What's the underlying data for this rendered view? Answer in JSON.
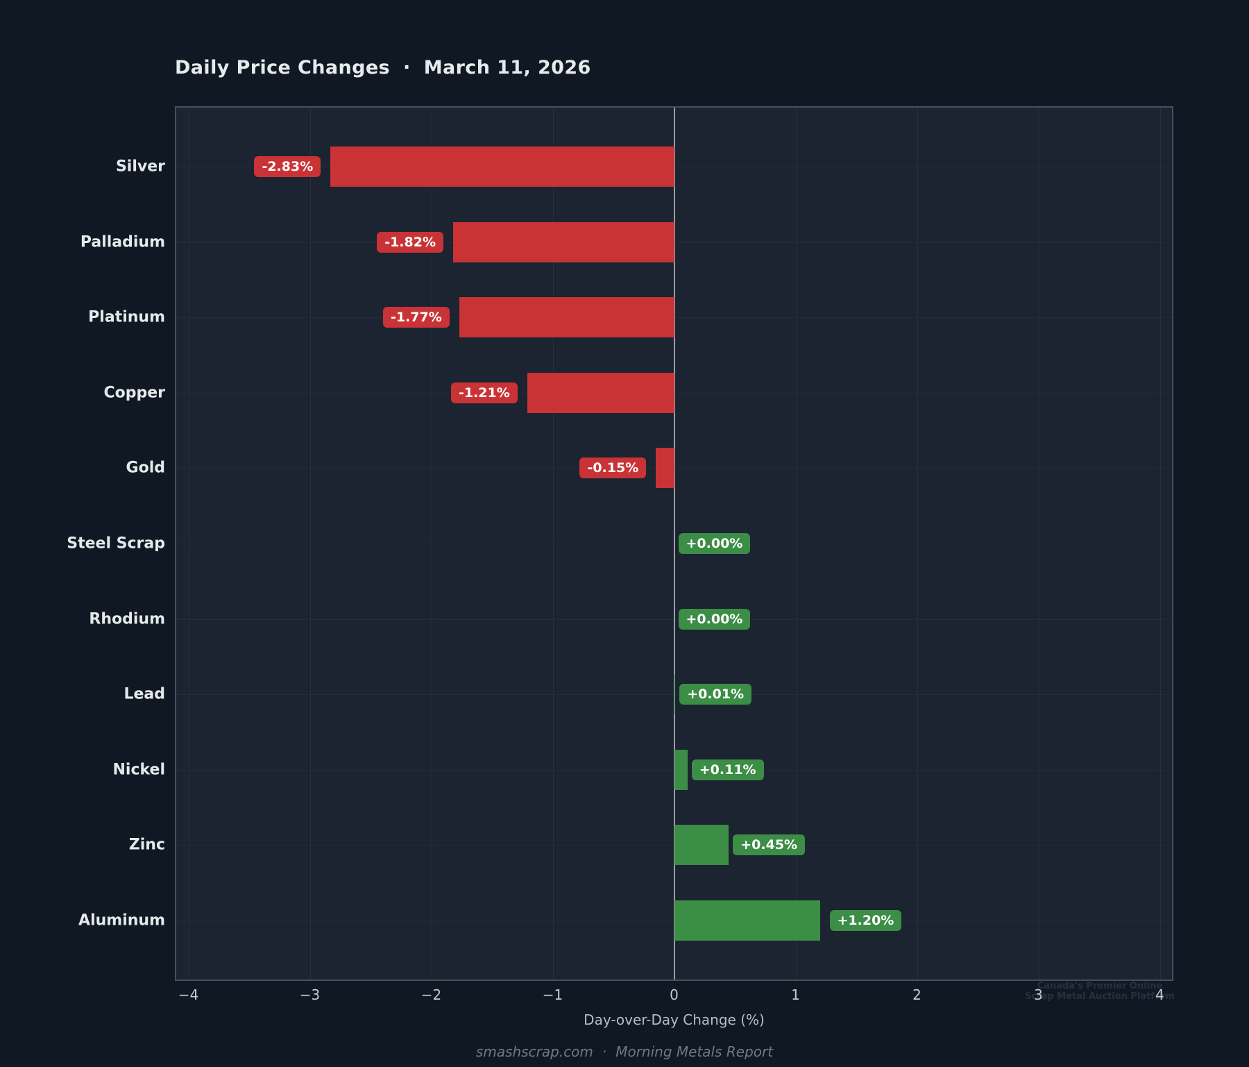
{
  "title": {
    "main": "Daily Price Changes",
    "sep": "·",
    "date": "March 11, 2026"
  },
  "chart_data": {
    "type": "bar",
    "orientation": "horizontal",
    "title": "Daily Price Changes · March 11, 2026",
    "categories": [
      "Silver",
      "Palladium",
      "Platinum",
      "Copper",
      "Gold",
      "Steel Scrap",
      "Rhodium",
      "Lead",
      "Nickel",
      "Zinc",
      "Aluminum"
    ],
    "values": [
      -2.83,
      -1.82,
      -1.77,
      -1.21,
      -0.15,
      0.0,
      0.0,
      0.01,
      0.11,
      0.45,
      1.2
    ],
    "value_labels": [
      "-2.83%",
      "-1.82%",
      "-1.77%",
      "-1.21%",
      "-0.15%",
      "+0.00%",
      "+0.00%",
      "+0.01%",
      "+0.11%",
      "+0.45%",
      "+1.20%"
    ],
    "xlabel": "Day-over-Day Change (%)",
    "ylabel": "",
    "xlim": [
      -4.1,
      4.1
    ],
    "xticks": [
      -4,
      -3,
      -2,
      -1,
      0,
      1,
      2,
      3,
      4
    ],
    "xtick_labels": [
      "−4",
      "−3",
      "−2",
      "−1",
      "0",
      "1",
      "2",
      "3",
      "4"
    ],
    "grid": true,
    "legend": false,
    "negative_color": "#c93336",
    "positive_color": "#3c8d45"
  },
  "watermark": {
    "line1": "Canada's Premier Online",
    "line2": "Scrap Metal Auction Platform"
  },
  "footer": {
    "site": "smashscrap.com",
    "sep": "·",
    "report": "Morning Metals Report"
  }
}
